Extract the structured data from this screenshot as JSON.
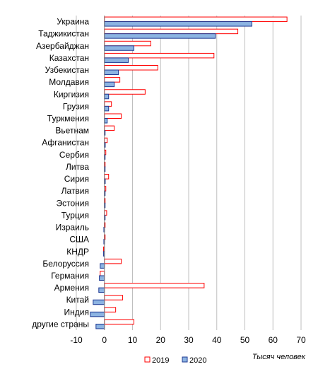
{
  "chart_data": {
    "type": "bar",
    "orientation": "horizontal",
    "categories": [
      "Украина",
      "Таджикистан",
      "Азербайджан",
      "Казахстан",
      "Узбекистан",
      "Молдавия",
      "Киргизия",
      "Грузия",
      "Туркмения",
      "Вьетнам",
      "Афганистан",
      "Сербия",
      "Литва",
      "Сирия",
      "Латвия",
      "Эстония",
      "Турция",
      "Израиль",
      "США",
      "КНДР",
      "Белоруссия",
      "Германия",
      "Армения",
      "Китай",
      "Индия",
      "другие страны"
    ],
    "series": [
      {
        "name": "2019",
        "color": "#ff0000",
        "fill": "#ffffff",
        "values": [
          65,
          47.5,
          16.5,
          39,
          19,
          5.5,
          14.5,
          2.5,
          6,
          3.5,
          1,
          0.5,
          0.2,
          1.5,
          0.5,
          0.2,
          0.8,
          0.1,
          0.2,
          -0.3,
          6,
          -1.5,
          35.5,
          6.5,
          4,
          10.5
        ]
      },
      {
        "name": "2020",
        "color": "#1f3a93",
        "fill": "#8db4e2",
        "values": [
          52.5,
          39.5,
          10.5,
          8.5,
          5,
          3.5,
          1.5,
          1.5,
          1,
          0.2,
          0.3,
          0.2,
          0.1,
          0.3,
          0.2,
          0.1,
          0.2,
          -0.2,
          -0.2,
          -0.3,
          -1.5,
          -1.8,
          -2,
          -4,
          -5,
          -3
        ]
      }
    ],
    "xlim": [
      -10,
      70
    ],
    "xticks": [
      "-10",
      "0",
      "10",
      "20",
      "30",
      "40",
      "50",
      "60",
      "70"
    ],
    "unit_label": "Тысяч человек",
    "grid": "vertical",
    "legend_position": "bottom"
  }
}
